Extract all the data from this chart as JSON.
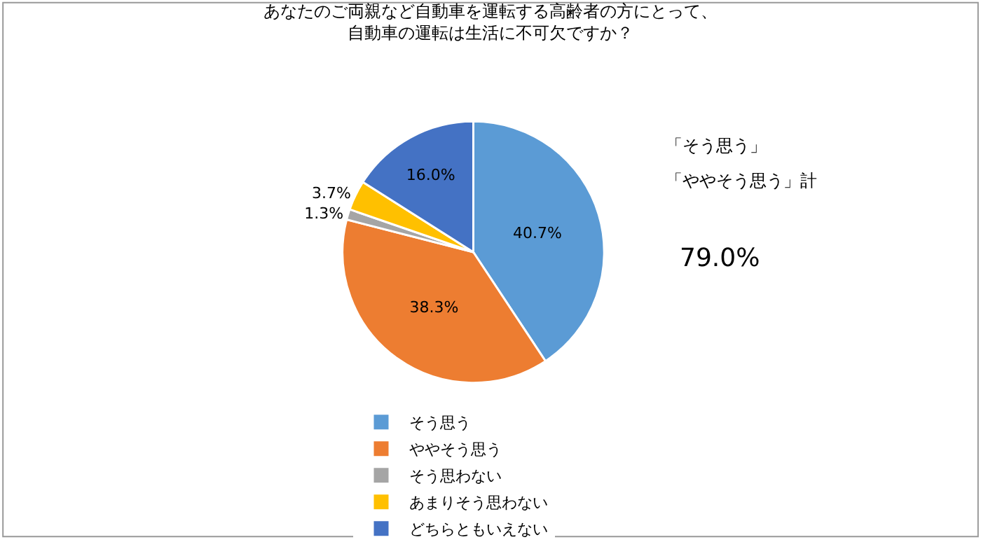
{
  "chart_data": {
    "type": "pie",
    "title": "あなたのご両親など自動車を運転する高齢者の方にとって、自動車の運転は生活に不可欠ですか？",
    "categories": [
      "そう思う",
      "ややそう思う",
      "そう思わない",
      "あまりそう思わない",
      "どちらともいえない"
    ],
    "values": [
      40.7,
      38.3,
      1.3,
      3.7,
      16.0
    ],
    "colors": [
      "#5b9bd5",
      "#ed7d31",
      "#a5a5a5",
      "#ffc000",
      "#4472c4"
    ],
    "value_labels": [
      "40.7%",
      "38.3%",
      "1.3%",
      "3.7%",
      "16.0%"
    ],
    "annotations": [
      "「そう思う」",
      "「ややそう思う」計",
      "79.0%"
    ],
    "legend": "bottom"
  }
}
